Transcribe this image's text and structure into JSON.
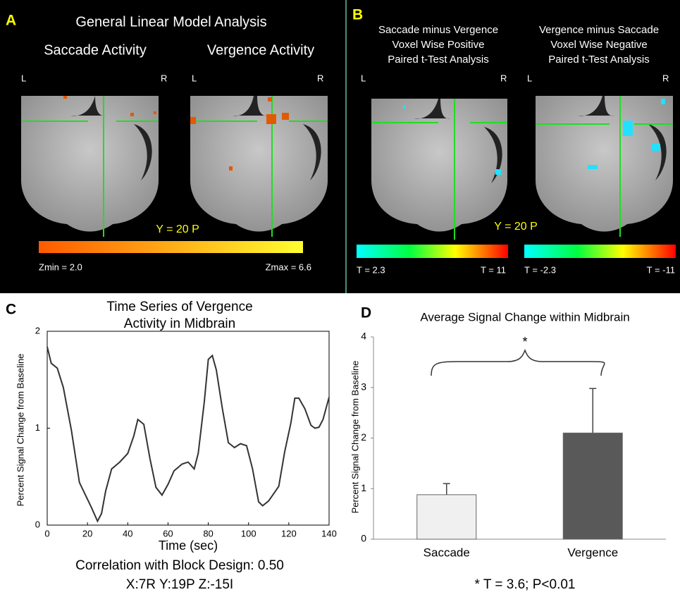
{
  "panels": {
    "a": {
      "letter": "A",
      "title": "General Linear Model Analysis",
      "left_label": "Saccade  Activity",
      "right_label": "Vergence Activity",
      "side_left": "L",
      "side_right": "R",
      "slice": "Y = 20 P",
      "scale_min": "Zmin = 2.0",
      "scale_max": "Zmax = 6.6"
    },
    "b": {
      "letter": "B",
      "left_heading": [
        "Saccade minus Vergence",
        "Voxel Wise Positive",
        "Paired t-Test Analysis"
      ],
      "right_heading": [
        "Vergence minus Saccade",
        "Voxel Wise Negative",
        "Paired t-Test Analysis"
      ],
      "side_left": "L",
      "side_right": "R",
      "slice": "Y = 20 P",
      "left_min": "T = 2.3",
      "left_max": "T = 11",
      "right_min": "T = -2.3",
      "right_max": "T = -11"
    }
  },
  "chart_data": [
    {
      "type": "line",
      "letter": "C",
      "title": [
        "Time Series of Vergence",
        "Activity in Midbrain"
      ],
      "x_label": "Time (sec)",
      "y_label": "Percent Signal Change from Baseline",
      "notes": [
        "Correlation with Block Design: 0.50",
        "X:7R   Y:19P  Z:-15I"
      ],
      "x": [
        0,
        2,
        5,
        8,
        12,
        16,
        19,
        22,
        25,
        27,
        29,
        32,
        36,
        40,
        43,
        45,
        48,
        51,
        54,
        57,
        60,
        63,
        67,
        70,
        73,
        75,
        78,
        80,
        82,
        84,
        87,
        90,
        93,
        96,
        99,
        102,
        105,
        107,
        110,
        112,
        115,
        118,
        121,
        123,
        125,
        128,
        131,
        133,
        135,
        137,
        140
      ],
      "values": [
        1.84,
        1.67,
        1.62,
        1.42,
        0.98,
        0.44,
        0.31,
        0.18,
        0.04,
        0.12,
        0.35,
        0.58,
        0.65,
        0.74,
        0.92,
        1.09,
        1.04,
        0.69,
        0.39,
        0.31,
        0.42,
        0.56,
        0.63,
        0.65,
        0.58,
        0.74,
        1.27,
        1.71,
        1.75,
        1.6,
        1.2,
        0.85,
        0.8,
        0.84,
        0.82,
        0.58,
        0.24,
        0.2,
        0.25,
        0.31,
        0.4,
        0.76,
        1.05,
        1.31,
        1.31,
        1.2,
        1.03,
        1.0,
        1.01,
        1.09,
        1.32
      ],
      "color": "#333333",
      "xlim": [
        0,
        140
      ],
      "ylim": [
        0,
        2
      ],
      "xticks": [
        0,
        20,
        40,
        60,
        80,
        100,
        120,
        140
      ],
      "yticks": [
        0,
        1,
        2
      ]
    },
    {
      "type": "bar",
      "letter": "D",
      "title": "Average Signal Change within Midbrain",
      "y_label": "Percent Signal Change from Baseline",
      "categories": [
        "Saccade",
        "Vergence"
      ],
      "values": [
        0.88,
        2.1
      ],
      "errors": [
        0.22,
        0.88
      ],
      "colors": [
        "#f0f0f0",
        "#595959"
      ],
      "ylim": [
        0,
        4
      ],
      "yticks": [
        0,
        1,
        2,
        3,
        4
      ],
      "annotation": "*",
      "note": "* T = 3.6; P<0.01"
    }
  ]
}
